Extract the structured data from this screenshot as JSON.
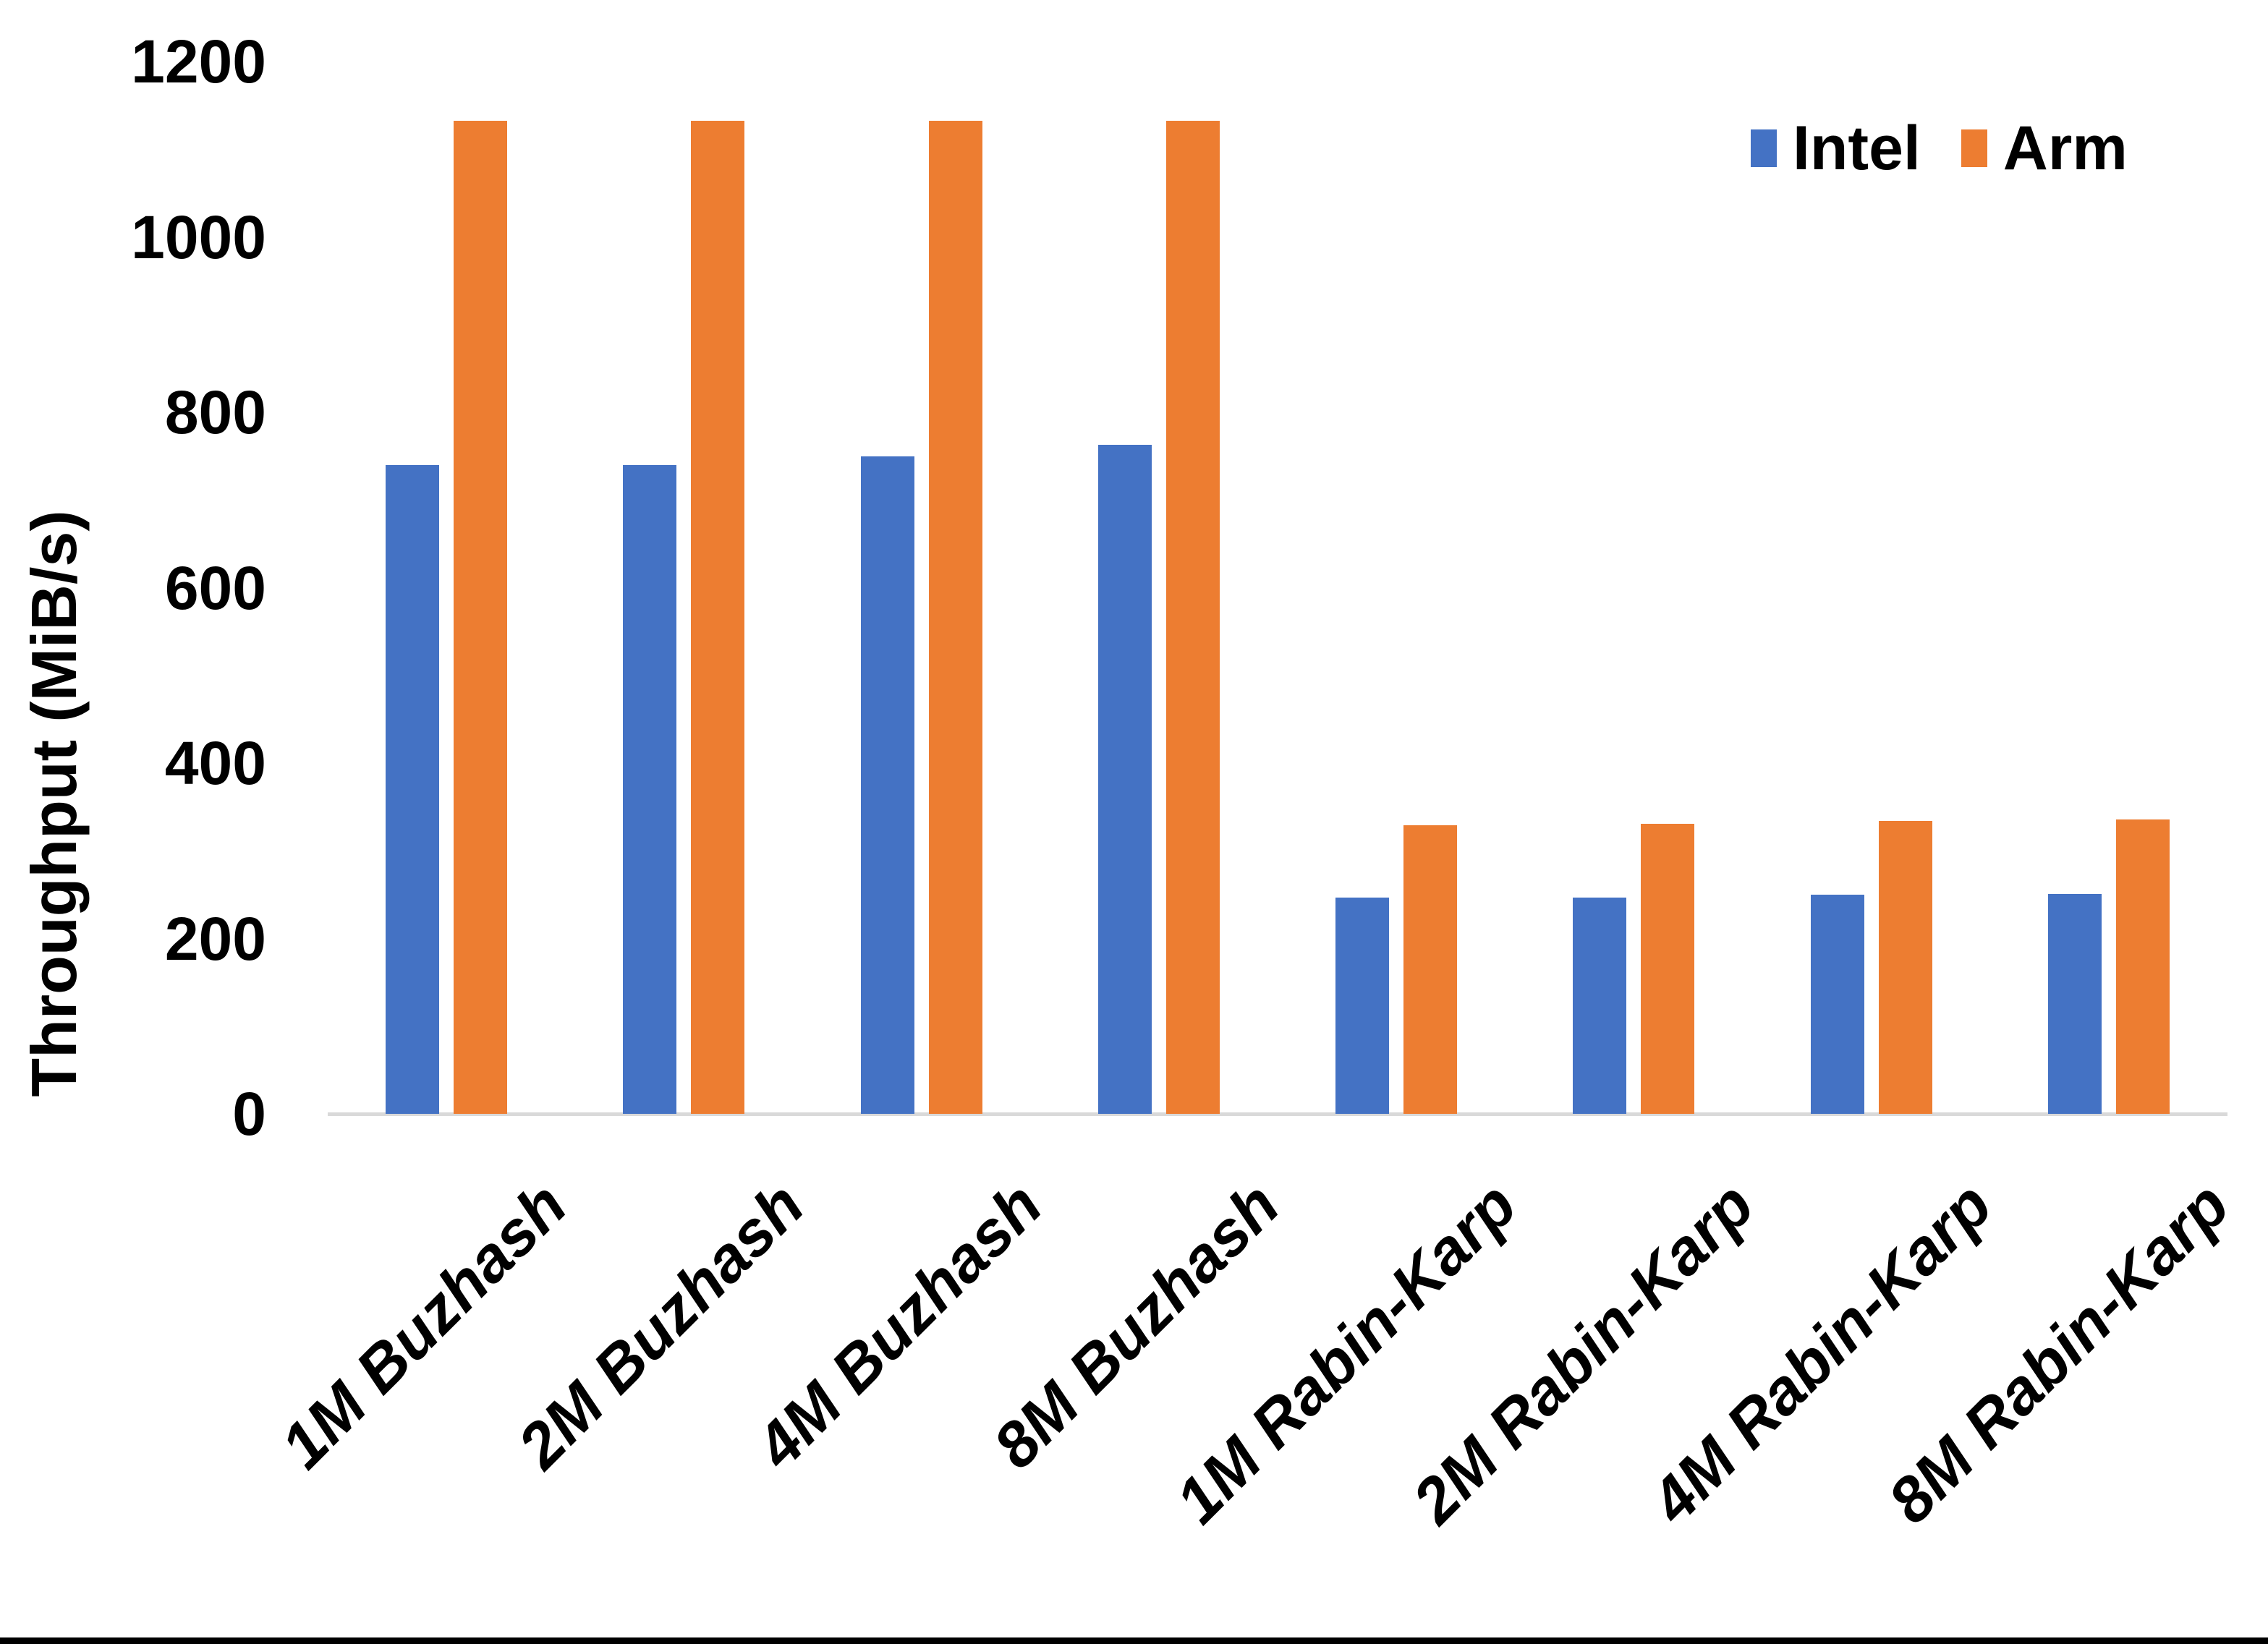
{
  "chart_data": {
    "type": "bar",
    "title": "",
    "categories": [
      "1M Buzhash",
      "2M Buzhash",
      "4M Buzhash",
      "8M Buzhash",
      "1M Rabin-Karp",
      "2M Rabin-Karp",
      "4M Rabin-Karp",
      "8M Rabin-Karp"
    ],
    "series": [
      {
        "name": "Intel",
        "color": "#4472C4",
        "values": [
          740,
          740,
          750,
          763,
          247,
          247,
          250,
          251
        ]
      },
      {
        "name": "Arm",
        "color": "#ED7D31",
        "values": [
          1132,
          1132,
          1132,
          1132,
          329,
          331,
          334,
          336
        ]
      }
    ],
    "xlabel": "",
    "ylabel": "Throughput (MiB/s)",
    "ylim": [
      0,
      1200
    ],
    "ytick_interval": 200,
    "yticks": [
      "0",
      "200",
      "400",
      "600",
      "800",
      "1000",
      "1200"
    ],
    "grid": false,
    "legend_position": "top-right"
  },
  "legend": {
    "items": [
      {
        "label": "Intel",
        "color": "#4472C4"
      },
      {
        "label": "Arm",
        "color": "#ED7D31"
      }
    ]
  },
  "colors": {
    "background": "#FFFFFF",
    "axis_line": "#D9D9D9",
    "text": "#000000",
    "intel": "#4472C4",
    "arm": "#ED7D31",
    "bottom_bar": "#000000"
  }
}
